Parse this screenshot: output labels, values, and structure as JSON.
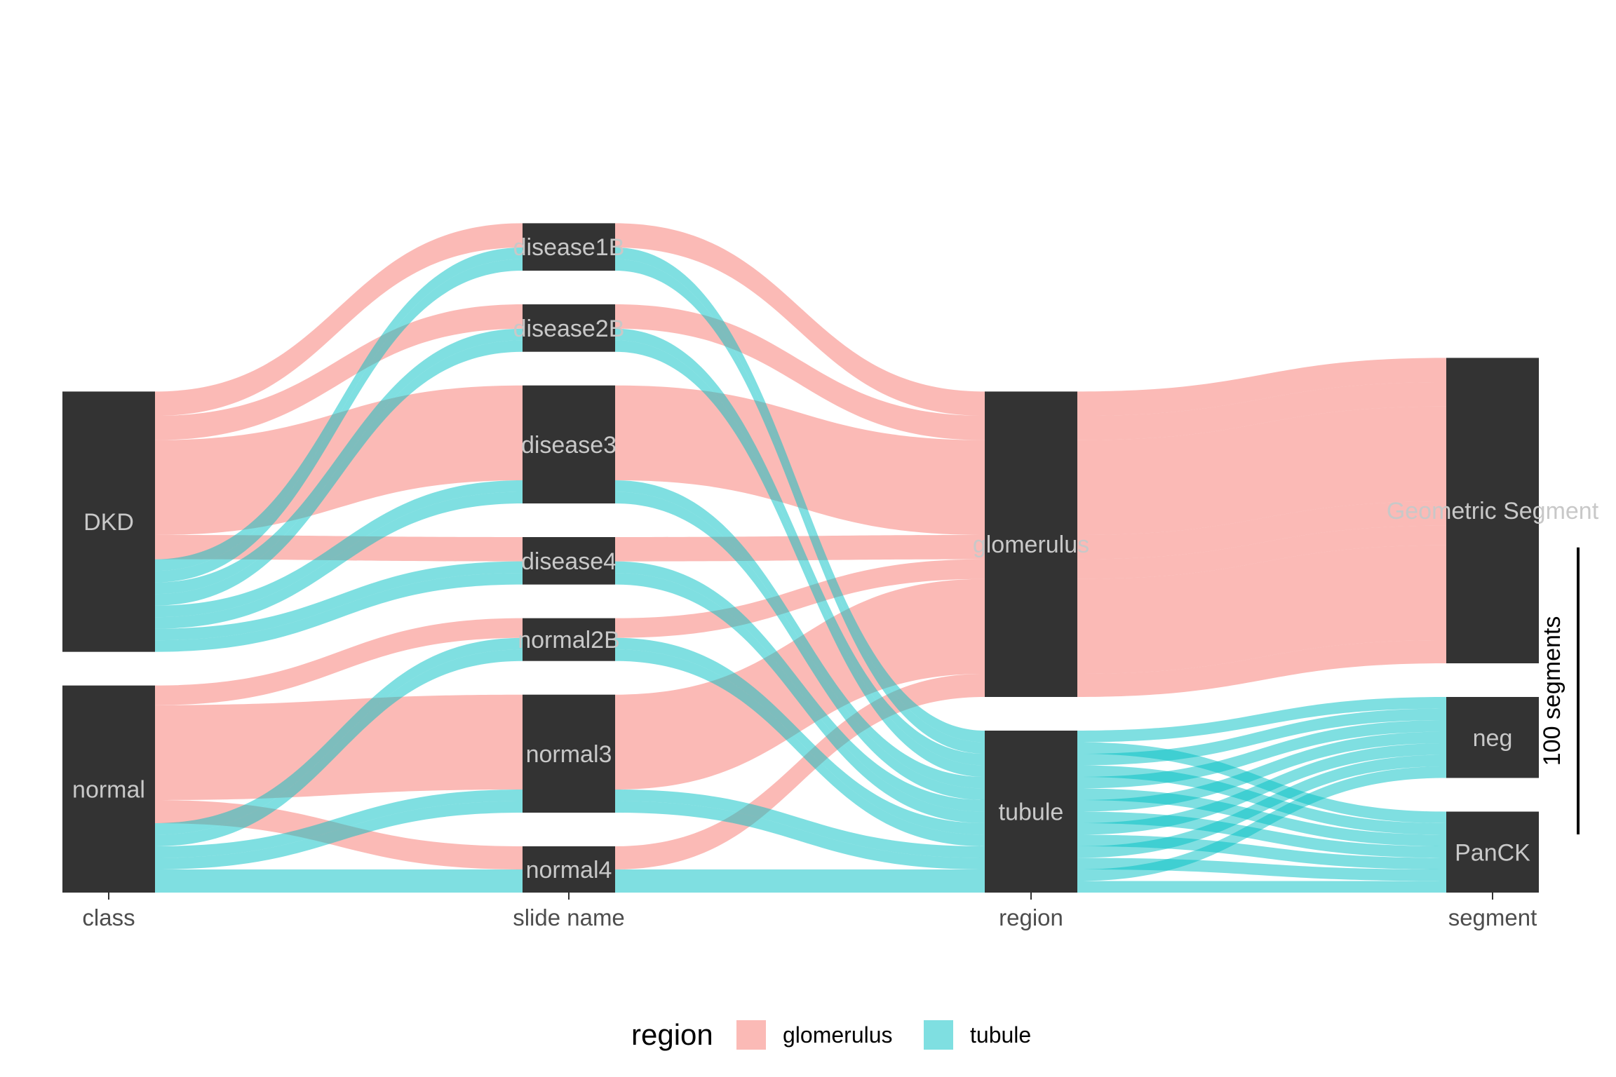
{
  "chart_data": {
    "type": "alluvial",
    "axes": [
      "class",
      "slide name",
      "region",
      "segment"
    ],
    "strata": {
      "class": [
        "DKD",
        "normal"
      ],
      "slide name": [
        "disease1B",
        "disease2B",
        "disease3",
        "disease4",
        "normal2B",
        "normal3",
        "normal4"
      ],
      "region": [
        "glomerulus",
        "tubule"
      ],
      "segment": [
        "Geometric Segment",
        "neg",
        "PanCK"
      ]
    },
    "flows": [
      {
        "class": "DKD",
        "slide name": "disease1B",
        "region": "glomerulus",
        "segment": "Geometric Segment",
        "count": 21
      },
      {
        "class": "DKD",
        "slide name": "disease2B",
        "region": "glomerulus",
        "segment": "Geometric Segment",
        "count": 21
      },
      {
        "class": "DKD",
        "slide name": "disease3",
        "region": "glomerulus",
        "segment": "Geometric Segment",
        "count": 82
      },
      {
        "class": "DKD",
        "slide name": "disease4",
        "region": "glomerulus",
        "segment": "Geometric Segment",
        "count": 21
      },
      {
        "class": "normal",
        "slide name": "normal2B",
        "region": "glomerulus",
        "segment": "Geometric Segment",
        "count": 17
      },
      {
        "class": "normal",
        "slide name": "normal3",
        "region": "glomerulus",
        "segment": "Geometric Segment",
        "count": 82
      },
      {
        "class": "normal",
        "slide name": "normal4",
        "region": "glomerulus",
        "segment": "Geometric Segment",
        "count": 20
      },
      {
        "class": "DKD",
        "slide name": "disease1B",
        "region": "tubule",
        "segment": "neg",
        "count": 10
      },
      {
        "class": "DKD",
        "slide name": "disease1B",
        "region": "tubule",
        "segment": "PanCK",
        "count": 10
      },
      {
        "class": "DKD",
        "slide name": "disease2B",
        "region": "tubule",
        "segment": "neg",
        "count": 10
      },
      {
        "class": "DKD",
        "slide name": "disease2B",
        "region": "tubule",
        "segment": "PanCK",
        "count": 10
      },
      {
        "class": "DKD",
        "slide name": "disease3",
        "region": "tubule",
        "segment": "neg",
        "count": 10
      },
      {
        "class": "DKD",
        "slide name": "disease3",
        "region": "tubule",
        "segment": "PanCK",
        "count": 10
      },
      {
        "class": "DKD",
        "slide name": "disease4",
        "region": "tubule",
        "segment": "neg",
        "count": 10
      },
      {
        "class": "DKD",
        "slide name": "disease4",
        "region": "tubule",
        "segment": "PanCK",
        "count": 10
      },
      {
        "class": "normal",
        "slide name": "normal2B",
        "region": "tubule",
        "segment": "neg",
        "count": 10
      },
      {
        "class": "normal",
        "slide name": "normal2B",
        "region": "tubule",
        "segment": "PanCK",
        "count": 10
      },
      {
        "class": "normal",
        "slide name": "normal3",
        "region": "tubule",
        "segment": "neg",
        "count": 10
      },
      {
        "class": "normal",
        "slide name": "normal3",
        "region": "tubule",
        "segment": "PanCK",
        "count": 10
      },
      {
        "class": "normal",
        "slide name": "normal4",
        "region": "tubule",
        "segment": "neg",
        "count": 10
      },
      {
        "class": "normal",
        "slide name": "normal4",
        "region": "tubule",
        "segment": "PanCK",
        "count": 10
      }
    ],
    "fill_variable": "region",
    "colors": {
      "glomerulus": "#F8766D",
      "tubule": "#00BFC4"
    },
    "flow_alpha": 0.5,
    "node_color": "#333333",
    "scale_bar": {
      "label": "100 segments",
      "value": 100
    },
    "legend": {
      "title": "region",
      "position": "bottom",
      "entries": [
        "glomerulus",
        "tubule"
      ]
    }
  }
}
